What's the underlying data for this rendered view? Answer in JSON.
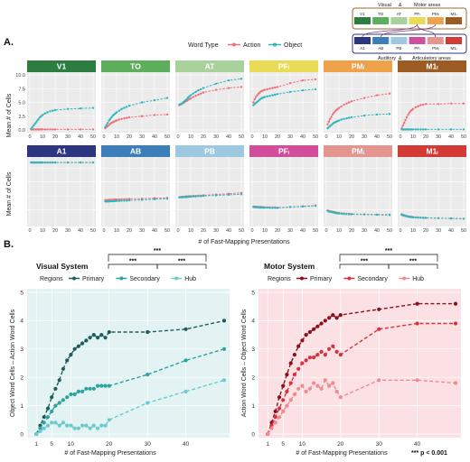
{
  "panel_a_label": "A.",
  "panel_b_label": "B.",
  "inset": {
    "title_left": "Visual",
    "title_amp": "&",
    "title_right": "Motor areas",
    "top_areas": [
      "V1",
      "TO",
      "AT",
      "PFₗ",
      "PMₗ",
      "M1ₗ"
    ],
    "bottom_areas": [
      "A1",
      "AB",
      "PB",
      "PFᵢ",
      "PMᵢ",
      "M1ᵢ"
    ],
    "bottom_title_left": "Auditory",
    "bottom_title_amp": "&",
    "bottom_title_right": "Articulatory areas"
  },
  "colors": {
    "action": "#F0707A",
    "object": "#2EB8BE",
    "strip_top": [
      "#2E7D40",
      "#5DAF5E",
      "#A9D29A",
      "#EADB57",
      "#F0A24A",
      "#9B5B23"
    ],
    "strip_bottom": [
      "#2C3580",
      "#3C7FB8",
      "#9CC8E0",
      "#D14E9B",
      "#E49590",
      "#D33A36"
    ],
    "visual_primary": "#1F5C5C",
    "visual_secondary": "#2BA39E",
    "visual_hub": "#6CC9CC",
    "motor_primary": "#8B0F1E",
    "motor_secondary": "#D9303E",
    "motor_hub": "#EE8A93",
    "visual_bg": "#E3F3F4",
    "motor_bg": "#FBE1E3"
  },
  "chart_data": [
    {
      "type": "line",
      "title": "",
      "legend_title": "Word Type",
      "legend": [
        "Action",
        "Object"
      ],
      "xlabel": "# of Fast-Mapping Presentations",
      "ylabel": "Mean # of Cells",
      "xlim": [
        0,
        50
      ],
      "ylim": [
        0,
        10
      ],
      "xticks": [
        "0",
        "10",
        "20",
        "30",
        "40",
        "50"
      ],
      "yticks": [
        "0.0",
        "2.5",
        "5.0",
        "7.5",
        "10.0"
      ],
      "x": [
        1,
        2,
        3,
        4,
        5,
        6,
        7,
        8,
        9,
        10,
        12,
        14,
        16,
        18,
        20,
        30,
        40,
        50
      ],
      "panels": [
        {
          "area": "V1",
          "row": 0,
          "action": [
            0.1,
            0.1,
            0.1,
            0.1,
            0.1,
            0.1,
            0.1,
            0.1,
            0.1,
            0.1,
            0.1,
            0.1,
            0.1,
            0.1,
            0.1,
            0.1,
            0.1,
            0.1
          ],
          "object": [
            0.2,
            0.5,
            0.8,
            1.1,
            1.4,
            1.7,
            2.0,
            2.3,
            2.5,
            2.7,
            3.0,
            3.2,
            3.4,
            3.5,
            3.6,
            3.8,
            3.9,
            4.0
          ]
        },
        {
          "area": "TO",
          "row": 0,
          "action": [
            0.3,
            0.5,
            0.7,
            0.9,
            1.1,
            1.3,
            1.4,
            1.5,
            1.6,
            1.7,
            1.9,
            2.0,
            2.1,
            2.2,
            2.3,
            2.5,
            2.7,
            2.8
          ],
          "object": [
            0.5,
            0.9,
            1.3,
            1.7,
            2.0,
            2.3,
            2.6,
            2.8,
            3.0,
            3.2,
            3.5,
            3.8,
            4.0,
            4.2,
            4.4,
            5.0,
            5.4,
            5.8
          ]
        },
        {
          "area": "AT",
          "row": 0,
          "action": [
            4.5,
            4.6,
            4.7,
            4.9,
            5.0,
            5.2,
            5.3,
            5.5,
            5.6,
            5.7,
            6.0,
            6.2,
            6.4,
            6.6,
            6.8,
            7.3,
            7.6,
            7.8
          ],
          "object": [
            4.6,
            4.7,
            4.8,
            5.0,
            5.2,
            5.4,
            5.6,
            5.9,
            6.1,
            6.3,
            6.6,
            6.9,
            7.2,
            7.4,
            7.6,
            8.4,
            9.0,
            9.3
          ]
        },
        {
          "area": "PFₗ",
          "row": 0,
          "action": [
            5.0,
            5.6,
            6.0,
            6.3,
            6.6,
            6.8,
            7.0,
            7.1,
            7.2,
            7.3,
            7.4,
            7.5,
            7.6,
            7.7,
            7.8,
            8.5,
            9.0,
            9.2
          ],
          "object": [
            4.5,
            4.7,
            4.9,
            5.1,
            5.3,
            5.5,
            5.7,
            5.8,
            5.9,
            6.0,
            6.1,
            6.2,
            6.3,
            6.4,
            6.5,
            6.9,
            7.2,
            7.4
          ]
        },
        {
          "area": "PMₗ",
          "row": 0,
          "action": [
            1.0,
            1.5,
            2.0,
            2.4,
            2.8,
            3.1,
            3.4,
            3.6,
            3.8,
            4.0,
            4.3,
            4.6,
            4.8,
            5.0,
            5.2,
            5.8,
            6.3,
            6.6
          ],
          "object": [
            0.3,
            0.5,
            0.7,
            0.9,
            1.1,
            1.3,
            1.4,
            1.5,
            1.6,
            1.7,
            1.9,
            2.0,
            2.1,
            2.2,
            2.3,
            2.6,
            2.8,
            2.9
          ]
        },
        {
          "area": "M1ₗ",
          "row": 0,
          "action": [
            0.3,
            0.8,
            1.3,
            1.8,
            2.3,
            2.7,
            3.1,
            3.4,
            3.6,
            3.8,
            4.1,
            4.3,
            4.5,
            4.6,
            4.7,
            4.7,
            4.8,
            4.8
          ],
          "object": [
            0.1,
            0.1,
            0.1,
            0.1,
            0.1,
            0.1,
            0.1,
            0.1,
            0.1,
            0.1,
            0.1,
            0.1,
            0.1,
            0.1,
            0.1,
            0.1,
            0.1,
            0.1
          ]
        },
        {
          "area": "A1",
          "row": 1,
          "action": [
            22,
            22,
            22,
            22,
            22,
            22,
            22,
            22,
            22,
            22,
            22,
            22,
            22,
            22,
            22,
            22,
            22,
            22
          ],
          "object": [
            22,
            22,
            22,
            22,
            22,
            22,
            22,
            22,
            22,
            22,
            22,
            22,
            22,
            22,
            22,
            22,
            22,
            22
          ]
        },
        {
          "area": "AB",
          "row": 1,
          "action": [
            8.5,
            8.5,
            8.5,
            8.6,
            8.6,
            8.6,
            8.6,
            8.7,
            8.7,
            8.7,
            8.7,
            8.8,
            8.8,
            8.8,
            8.9,
            9.0,
            9.2,
            9.3
          ],
          "object": [
            8.0,
            8.0,
            8.0,
            8.0,
            8.1,
            8.1,
            8.1,
            8.1,
            8.2,
            8.2,
            8.2,
            8.3,
            8.3,
            8.3,
            8.4,
            8.6,
            8.8,
            9.0
          ]
        },
        {
          "area": "PB",
          "row": 1,
          "action": [
            9.6,
            9.6,
            9.7,
            9.7,
            9.7,
            9.8,
            9.8,
            9.8,
            9.9,
            9.9,
            10.0,
            10.0,
            10.1,
            10.1,
            10.2,
            10.5,
            10.8,
            11.1
          ],
          "object": [
            9.5,
            9.5,
            9.5,
            9.6,
            9.6,
            9.6,
            9.6,
            9.7,
            9.7,
            9.7,
            9.8,
            9.8,
            9.9,
            9.9,
            10.0,
            10.2,
            10.4,
            10.6
          ]
        },
        {
          "area": "PFᵢ",
          "row": 1,
          "action": [
            6.2,
            6.2,
            6.1,
            6.1,
            6.0,
            6.0,
            6.0,
            6.0,
            5.9,
            5.9,
            5.9,
            5.9,
            5.9,
            5.9,
            5.8,
            6.0,
            6.3,
            6.6
          ],
          "object": [
            6.0,
            6.0,
            5.9,
            5.9,
            5.9,
            5.8,
            5.8,
            5.8,
            5.8,
            5.8,
            5.8,
            5.7,
            5.7,
            5.7,
            5.7,
            6.0,
            6.2,
            6.4
          ]
        },
        {
          "area": "PMᵢ",
          "row": 1,
          "action": [
            4.8,
            4.6,
            4.5,
            4.4,
            4.3,
            4.2,
            4.1,
            4.0,
            3.9,
            3.9,
            3.8,
            3.7,
            3.6,
            3.6,
            3.5,
            3.4,
            3.3,
            3.3
          ],
          "object": [
            4.6,
            4.4,
            4.3,
            4.2,
            4.1,
            4.0,
            3.9,
            3.8,
            3.8,
            3.7,
            3.6,
            3.5,
            3.5,
            3.4,
            3.4,
            3.3,
            3.2,
            3.1
          ]
        },
        {
          "area": "M1ᵢ",
          "row": 1,
          "action": [
            3.4,
            3.2,
            3.0,
            2.9,
            2.8,
            2.7,
            2.6,
            2.5,
            2.5,
            2.4,
            2.3,
            2.3,
            2.2,
            2.2,
            2.1,
            2.0,
            1.9,
            1.8
          ],
          "object": [
            3.2,
            3.0,
            2.9,
            2.8,
            2.7,
            2.6,
            2.5,
            2.4,
            2.4,
            2.3,
            2.3,
            2.2,
            2.2,
            2.1,
            2.1,
            2.0,
            1.9,
            1.8
          ]
        }
      ]
    },
    {
      "type": "line",
      "title": "Visual System",
      "legend_title": "Regions",
      "xlabel": "# of Fast-Mapping Presentations",
      "ylabel": "Object Word Cells – Action Word Cells",
      "xlim": [
        0,
        50
      ],
      "ylim": [
        0,
        5
      ],
      "xticks": [
        "1",
        "5",
        "10",
        "20",
        "30",
        "40"
      ],
      "xtick_values": [
        1,
        5,
        10,
        20,
        30,
        40
      ],
      "yticks": [
        "0",
        "1",
        "2",
        "3",
        "4",
        "5"
      ],
      "significance": [
        "***",
        "***",
        "***"
      ],
      "series": [
        {
          "name": "Primary",
          "x": [
            1,
            2,
            3,
            4,
            5,
            6,
            7,
            8,
            9,
            10,
            11,
            12,
            13,
            14,
            15,
            16,
            17,
            18,
            19,
            20,
            30,
            40,
            50
          ],
          "values": [
            0.0,
            0.3,
            0.6,
            0.9,
            1.3,
            1.6,
            1.9,
            2.3,
            2.6,
            2.8,
            3.0,
            3.1,
            3.2,
            3.3,
            3.4,
            3.5,
            3.4,
            3.5,
            3.4,
            3.6,
            3.6,
            3.7,
            4.0
          ]
        },
        {
          "name": "Secondary",
          "x": [
            1,
            2,
            3,
            4,
            5,
            6,
            7,
            8,
            9,
            10,
            11,
            12,
            13,
            14,
            15,
            16,
            17,
            18,
            19,
            20,
            30,
            40,
            50
          ],
          "values": [
            0.0,
            0.2,
            0.4,
            0.6,
            0.8,
            1.0,
            1.1,
            1.2,
            1.3,
            1.4,
            1.4,
            1.5,
            1.5,
            1.6,
            1.6,
            1.6,
            1.7,
            1.7,
            1.7,
            1.7,
            2.1,
            2.6,
            3.0
          ]
        },
        {
          "name": "Hub",
          "x": [
            1,
            2,
            3,
            4,
            5,
            6,
            7,
            8,
            9,
            10,
            11,
            12,
            13,
            14,
            15,
            16,
            17,
            18,
            19,
            20,
            30,
            40,
            50
          ],
          "values": [
            0.0,
            0.1,
            0.2,
            0.3,
            0.4,
            0.4,
            0.3,
            0.4,
            0.3,
            0.3,
            0.2,
            0.2,
            0.3,
            0.3,
            0.2,
            0.3,
            0.2,
            0.3,
            0.3,
            0.5,
            1.1,
            1.5,
            1.9
          ]
        }
      ]
    },
    {
      "type": "line",
      "title": "Motor System",
      "legend_title": "Regions",
      "xlabel": "# of Fast-Mapping Presentations",
      "ylabel": "Action Word Cells – Object Word Cells",
      "xlim": [
        0,
        50
      ],
      "ylim": [
        0,
        5
      ],
      "xticks": [
        "1",
        "5",
        "10",
        "20",
        "30",
        "40"
      ],
      "xtick_values": [
        1,
        5,
        10,
        20,
        30,
        40
      ],
      "yticks": [
        "0",
        "1",
        "2",
        "3",
        "4",
        "5"
      ],
      "significance": [
        "***",
        "***",
        "***"
      ],
      "series": [
        {
          "name": "Primary",
          "x": [
            1,
            2,
            3,
            4,
            5,
            6,
            7,
            8,
            9,
            10,
            11,
            12,
            13,
            14,
            15,
            16,
            17,
            18,
            19,
            20,
            30,
            40,
            50
          ],
          "values": [
            0.0,
            0.4,
            0.8,
            1.3,
            1.7,
            2.1,
            2.5,
            2.8,
            3.1,
            3.3,
            3.5,
            3.6,
            3.7,
            3.8,
            3.9,
            4.0,
            4.1,
            4.2,
            4.1,
            4.2,
            4.4,
            4.6,
            4.6
          ]
        },
        {
          "name": "Secondary",
          "x": [
            1,
            2,
            3,
            4,
            5,
            6,
            7,
            8,
            9,
            10,
            11,
            12,
            13,
            14,
            15,
            16,
            17,
            18,
            19,
            20,
            30,
            40,
            50
          ],
          "values": [
            0.0,
            0.3,
            0.6,
            0.9,
            1.2,
            1.5,
            1.8,
            2.1,
            2.3,
            2.5,
            2.6,
            2.7,
            2.7,
            2.8,
            2.9,
            2.8,
            3.0,
            3.1,
            2.9,
            2.8,
            3.7,
            3.9,
            3.9
          ]
        },
        {
          "name": "Hub",
          "x": [
            1,
            2,
            3,
            4,
            5,
            6,
            7,
            8,
            9,
            10,
            11,
            12,
            13,
            14,
            15,
            16,
            17,
            18,
            19,
            20,
            30,
            40,
            50
          ],
          "values": [
            0.0,
            0.2,
            0.4,
            0.6,
            0.8,
            1.0,
            1.2,
            1.4,
            1.6,
            1.7,
            1.5,
            1.6,
            1.8,
            1.7,
            1.6,
            1.9,
            1.7,
            1.8,
            1.5,
            1.3,
            1.9,
            1.9,
            1.8
          ]
        }
      ]
    }
  ],
  "footnote": "*** p < 0.001"
}
